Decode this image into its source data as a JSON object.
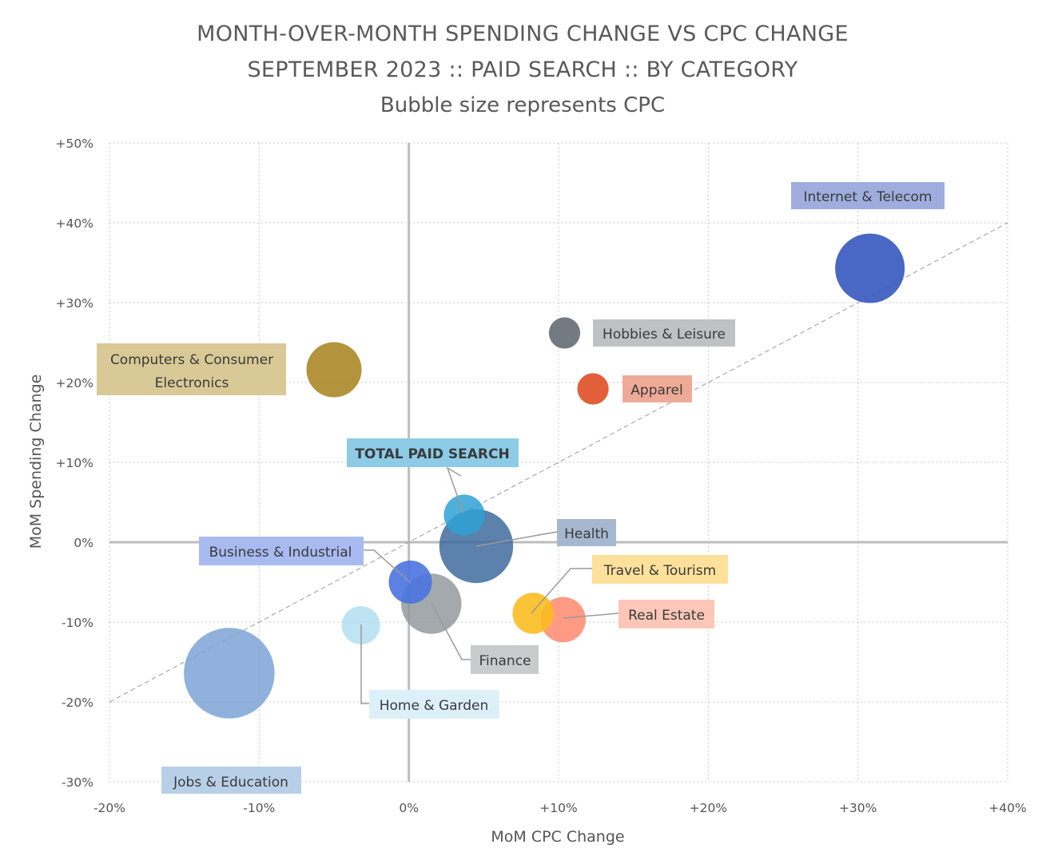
{
  "chart_data": {
    "type": "scatter",
    "title_lines": [
      "MONTH-OVER-MONTH SPENDING CHANGE VS CPC CHANGE",
      "SEPTEMBER 2023 :: PAID SEARCH :: BY CATEGORY"
    ],
    "subtitle": "Bubble size represents CPC",
    "xlabel": "MoM CPC Change",
    "ylabel": "MoM Spending Change",
    "xlim": [
      -20,
      40
    ],
    "ylim": [
      -30,
      50
    ],
    "x_ticks": [
      -20,
      -10,
      0,
      10,
      20,
      30,
      40
    ],
    "x_tick_labels": [
      "-20%",
      "-10%",
      "0%",
      "+10%",
      "+20%",
      "+30%",
      "+40%"
    ],
    "y_ticks": [
      -30,
      -20,
      -10,
      0,
      10,
      20,
      30,
      40,
      50
    ],
    "y_tick_labels": [
      "-30%",
      "-20%",
      "-10%",
      "0%",
      "+10%",
      "+20%",
      "+30%",
      "+40%",
      "+50%"
    ],
    "grid": true,
    "trendline": {
      "from": [
        -20,
        -20
      ],
      "to": [
        40,
        40
      ]
    },
    "series": [
      {
        "name": "Jobs & Education",
        "x": -12.0,
        "y": -16.4,
        "size": 3.35,
        "color": "#7ba3d6",
        "opacity": 0.85,
        "label_bg": "#b8cfe8"
      },
      {
        "name": "Home & Garden",
        "x": -3.2,
        "y": -10.4,
        "size": 0.6,
        "color": "#b3dff2",
        "opacity": 0.85,
        "label_bg": "#dcf0fa"
      },
      {
        "name": "Computers & Consumer Electronics",
        "x": -5.0,
        "y": 21.6,
        "size": 1.24,
        "color": "#ad8a2b",
        "opacity": 0.92,
        "label_bg": "#d9c996"
      },
      {
        "name": "Finance",
        "x": 1.5,
        "y": -7.7,
        "size": 1.48,
        "color": "#8c9398",
        "opacity": 0.8,
        "label_bg": "#c9cbcd"
      },
      {
        "name": "Business & Industrial",
        "x": 0.1,
        "y": -5.0,
        "size": 0.76,
        "color": "#4a73e0",
        "opacity": 0.9,
        "label_bg": "#a8baf0"
      },
      {
        "name": "Health",
        "x": 4.5,
        "y": -0.5,
        "size": 2.22,
        "color": "#3e6b9e",
        "opacity": 0.85,
        "label_bg": "#a5b8cf"
      },
      {
        "name": "TOTAL PAID SEARCH",
        "x": 3.7,
        "y": 3.4,
        "size": 0.68,
        "color": "#2fa2d3",
        "opacity": 0.85,
        "label_bg": "#8ccce6"
      },
      {
        "name": "Travel & Tourism",
        "x": 8.3,
        "y": -8.9,
        "size": 0.69,
        "color": "#fbbd20",
        "opacity": 0.9,
        "label_bg": "#fde19b"
      },
      {
        "name": "Real Estate",
        "x": 10.3,
        "y": -9.7,
        "size": 0.84,
        "color": "#ff8a6e",
        "opacity": 0.85,
        "label_bg": "#fcc7b8"
      },
      {
        "name": "Hobbies & Leisure",
        "x": 10.4,
        "y": 26.2,
        "size": 0.4,
        "color": "#6d737a",
        "opacity": 0.95,
        "label_bg": "#bfc1c3"
      },
      {
        "name": "Apparel",
        "x": 12.3,
        "y": 19.2,
        "size": 0.4,
        "color": "#e0562e",
        "opacity": 0.95,
        "label_bg": "#efaa97"
      },
      {
        "name": "Internet & Telecom",
        "x": 30.8,
        "y": 34.3,
        "size": 1.97,
        "color": "#3a5abf",
        "opacity": 0.92,
        "label_bg": "#9fadde"
      }
    ]
  }
}
